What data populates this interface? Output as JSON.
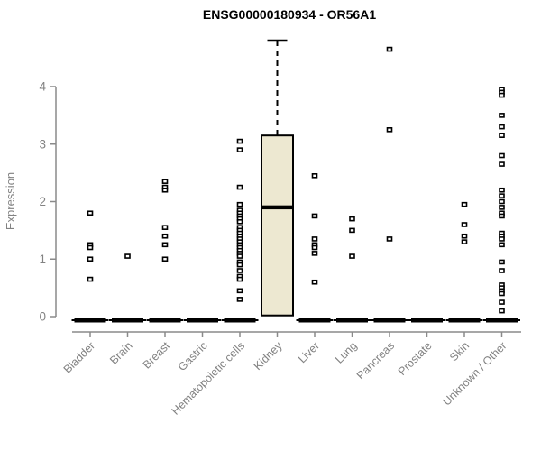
{
  "chart_data": {
    "type": "boxplot",
    "title": "ENSG00000180934 - OR56A1",
    "xlabel": "",
    "ylabel": "Expression",
    "yticks": [
      0,
      1,
      2,
      3,
      4
    ],
    "ylim": [
      0,
      4.9
    ],
    "grid": false,
    "legend": "none",
    "colors": {
      "axis": "#8a8a8a",
      "tick_label": "#828282",
      "box_fill": "#ede8d1",
      "data": "#000000",
      "title": "#000000"
    },
    "categories": [
      "Bladder",
      "Brain",
      "Breast",
      "Gastric",
      "Hematopoietic cells",
      "Kidney",
      "Liver",
      "Lung",
      "Pancreas",
      "Prostate",
      "Skin",
      "Unknown / Other"
    ],
    "boxes": [
      {
        "category": "Bladder",
        "q1": 0,
        "median": 0,
        "q3": 0,
        "whisker_low": 0,
        "whisker_high": 0,
        "points": [
          1.8,
          1.25,
          1.2,
          1.0,
          0.65
        ]
      },
      {
        "category": "Brain",
        "q1": 0,
        "median": 0,
        "q3": 0,
        "whisker_low": 0,
        "whisker_high": 0,
        "points": [
          1.05
        ]
      },
      {
        "category": "Breast",
        "q1": 0,
        "median": 0,
        "q3": 0,
        "whisker_low": 0,
        "whisker_high": 0,
        "points": [
          2.35,
          2.25,
          2.2,
          1.55,
          1.4,
          1.25,
          1.0
        ]
      },
      {
        "category": "Gastric",
        "q1": 0,
        "median": 0,
        "q3": 0,
        "whisker_low": 0,
        "whisker_high": 0,
        "points": []
      },
      {
        "category": "Hematopoietic cells",
        "q1": 0,
        "median": 0,
        "q3": 0,
        "whisker_low": 0,
        "whisker_high": 0,
        "points": [
          3.05,
          2.9,
          2.25,
          1.95,
          1.85,
          1.8,
          1.75,
          1.7,
          1.65,
          1.55,
          1.5,
          1.45,
          1.4,
          1.35,
          1.3,
          1.25,
          1.2,
          1.15,
          1.1,
          1.05,
          0.95,
          0.9,
          0.8,
          0.7,
          0.65,
          0.45,
          0.3
        ]
      },
      {
        "category": "Kidney",
        "q1": 0.02,
        "median": 1.9,
        "q3": 3.15,
        "whisker_low": 0.02,
        "whisker_high": 4.8,
        "points": []
      },
      {
        "category": "Liver",
        "q1": 0,
        "median": 0,
        "q3": 0,
        "whisker_low": 0,
        "whisker_high": 0,
        "points": [
          2.45,
          1.75,
          1.35,
          1.25,
          1.2,
          1.1,
          0.6
        ]
      },
      {
        "category": "Lung",
        "q1": 0,
        "median": 0,
        "q3": 0,
        "whisker_low": 0,
        "whisker_high": 0,
        "points": [
          1.7,
          1.5,
          1.05
        ]
      },
      {
        "category": "Pancreas",
        "q1": 0,
        "median": 0,
        "q3": 0,
        "whisker_low": 0,
        "whisker_high": 0,
        "points": [
          4.65,
          3.25,
          1.35
        ]
      },
      {
        "category": "Prostate",
        "q1": 0,
        "median": 0,
        "q3": 0,
        "whisker_low": 0,
        "whisker_high": 0,
        "points": []
      },
      {
        "category": "Skin",
        "q1": 0,
        "median": 0,
        "q3": 0,
        "whisker_low": 0,
        "whisker_high": 0,
        "points": [
          1.95,
          1.6,
          1.4,
          1.3
        ]
      },
      {
        "category": "Unknown / Other",
        "q1": 0,
        "median": 0,
        "q3": 0,
        "whisker_low": 0,
        "whisker_high": 0,
        "points": [
          3.95,
          3.9,
          3.85,
          3.5,
          3.3,
          3.15,
          2.8,
          2.65,
          2.2,
          2.1,
          2.0,
          1.9,
          1.8,
          1.75,
          1.45,
          1.4,
          1.35,
          1.25,
          0.95,
          0.8,
          0.55,
          0.5,
          0.45,
          0.4,
          0.25,
          0.1
        ]
      }
    ]
  }
}
